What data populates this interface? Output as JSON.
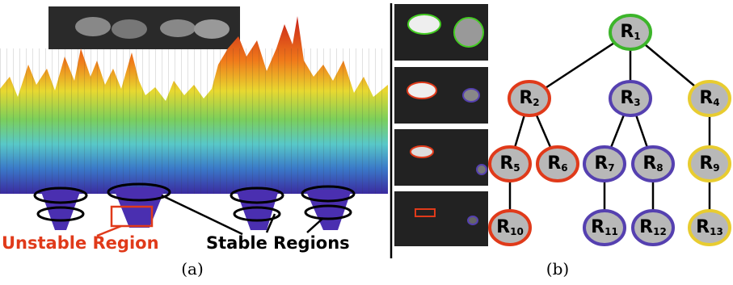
{
  "panel_a": {
    "labels": [
      "Unstable Region",
      "Stable Regions"
    ],
    "caption": "(a)"
  },
  "panel_b": {
    "caption": "(b)",
    "nodes": [
      {
        "label": "R",
        "subscript": "1"
      },
      {
        "label": "R",
        "subscript": "2"
      },
      {
        "label": "R",
        "subscript": "3"
      },
      {
        "label": "R",
        "subscript": "4"
      },
      {
        "label": "R",
        "subscript": "5"
      },
      {
        "label": "R",
        "subscript": "6"
      },
      {
        "label": "R",
        "subscript": "7"
      },
      {
        "label": "R",
        "subscript": "8"
      },
      {
        "label": "R",
        "subscript": "9"
      },
      {
        "label": "R",
        "subscript": "10"
      },
      {
        "label": "R",
        "subscript": "11"
      },
      {
        "label": "R",
        "subscript": "12"
      },
      {
        "label": "R",
        "subscript": "13"
      }
    ]
  }
}
